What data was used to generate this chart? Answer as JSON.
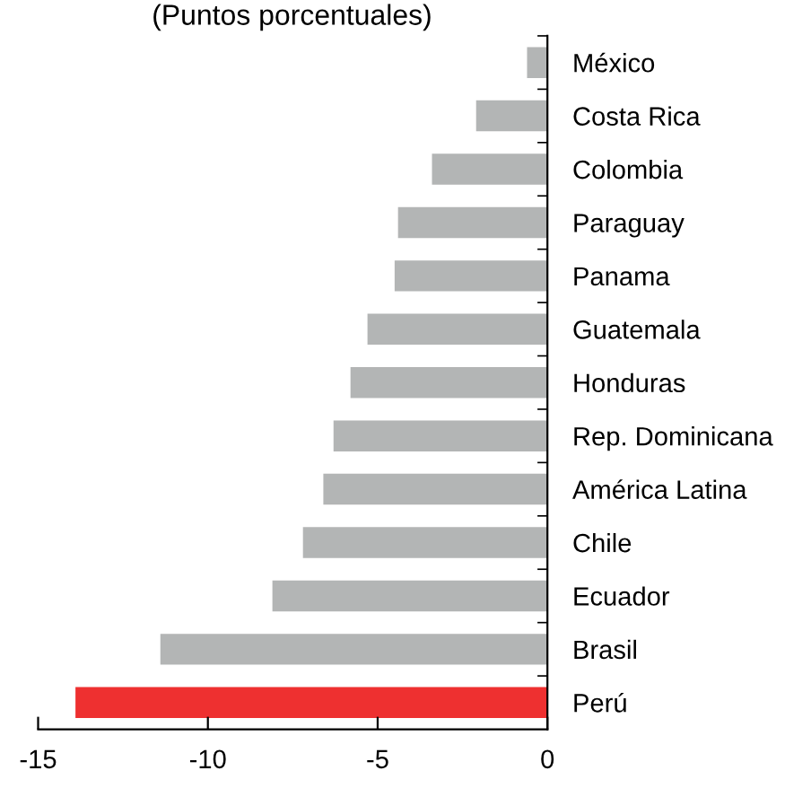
{
  "chart_data": {
    "type": "bar",
    "orientation": "horizontal",
    "subtitle": "(Puntos porcentuales)",
    "categories": [
      "México",
      "Costa Rica",
      "Colombia",
      "Paraguay",
      "Panama",
      "Guatemala",
      "Honduras",
      "Rep. Dominicana",
      "América Latina",
      "Chile",
      "Ecuador",
      "Brasil",
      "Perú"
    ],
    "values": [
      -0.6,
      -2.1,
      -3.4,
      -4.4,
      -4.5,
      -5.3,
      -5.8,
      -6.3,
      -6.6,
      -7.2,
      -8.1,
      -11.4,
      -13.9
    ],
    "colors": [
      "#b3b5b5",
      "#b3b5b5",
      "#b3b5b5",
      "#b3b5b5",
      "#b3b5b5",
      "#b3b5b5",
      "#b3b5b5",
      "#b3b5b5",
      "#b3b5b5",
      "#b3b5b5",
      "#b3b5b5",
      "#b3b5b5",
      "#ee3030"
    ],
    "xlim": [
      -15,
      0
    ],
    "xticks": [
      -15,
      -10,
      -5,
      0
    ],
    "grid": false,
    "legend": false
  }
}
